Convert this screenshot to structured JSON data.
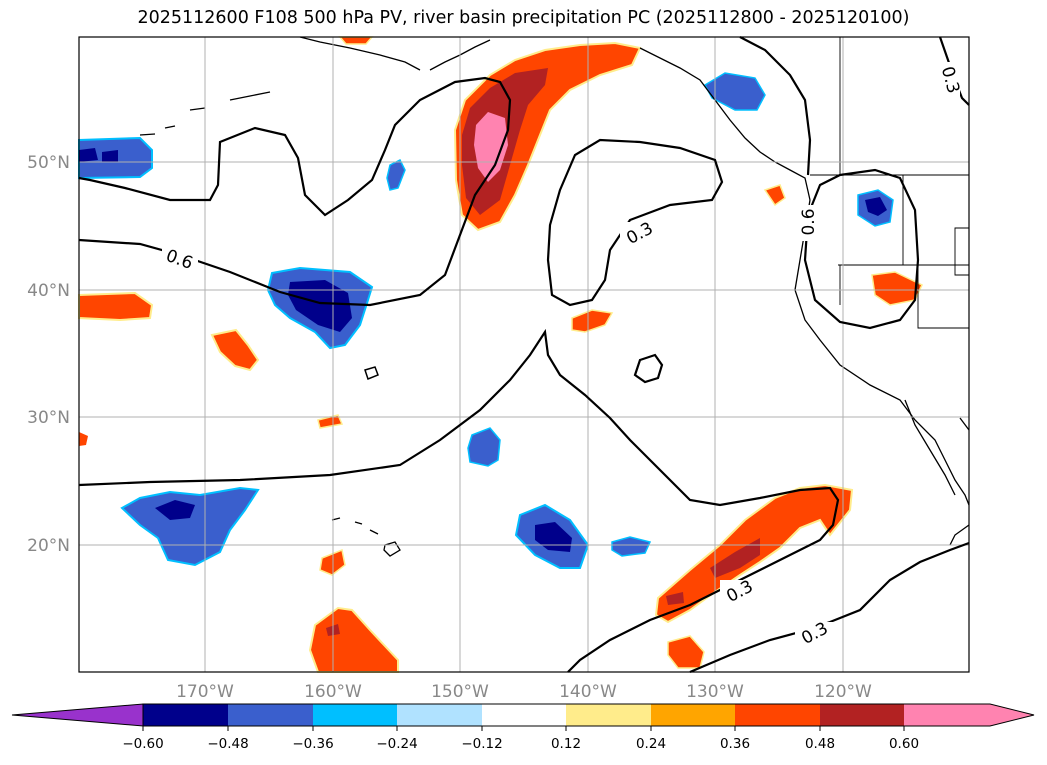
{
  "title": "2025112600 F108 500 hPa PV, river basin precipitation PC (2025112800 - 2025120100)",
  "map": {
    "lat_labels": [
      "50°N",
      "40°N",
      "30°N",
      "20°N"
    ],
    "lon_labels": [
      "170°W",
      "160°W",
      "150°W",
      "140°W",
      "130°W",
      "120°W"
    ],
    "contour_labels": [
      "0.6",
      "0.3",
      "0.6",
      "0.3",
      "0.3",
      "0.3"
    ],
    "pv_contour_levels": [
      0.3,
      0.6
    ],
    "grid": true
  },
  "colorbar": {
    "ticks": [
      "−0.60",
      "−0.48",
      "−0.36",
      "−0.24",
      "−0.12",
      "0.12",
      "0.24",
      "0.36",
      "0.48",
      "0.60"
    ],
    "extend": "both",
    "colors": [
      "#9932cc",
      "#00008b",
      "#3a5fcd",
      "#00bfff",
      "#b0e2ff",
      "#ffffff",
      "#ffec8b",
      "#ffa500",
      "#ff4500",
      "#b22222",
      "#ff83b0"
    ]
  },
  "colors": {
    "neg_extreme": "#00008b",
    "neg_strong": "#3a5fcd",
    "neg_mid": "#00bfff",
    "pos_low": "#ffec8b",
    "pos_mid": "#ffa500",
    "pos_strong": "#ff4500",
    "pos_high": "#b22222",
    "pos_extreme": "#ff83b0",
    "gridline": "#b0b0b0",
    "contour": "#000000"
  }
}
